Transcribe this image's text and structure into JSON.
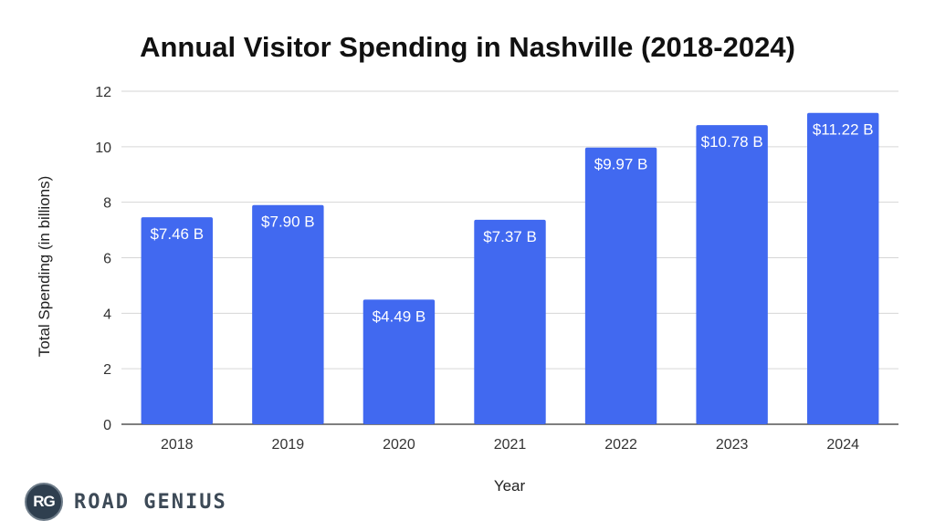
{
  "chart_data": {
    "type": "bar",
    "title": "Annual Visitor Spending in Nashville (2018-2024)",
    "xlabel": "Year",
    "ylabel": "Total Spending (in billions)",
    "categories": [
      "2018",
      "2019",
      "2020",
      "2021",
      "2022",
      "2023",
      "2024"
    ],
    "values": [
      7.46,
      7.9,
      4.49,
      7.37,
      9.97,
      10.78,
      11.22
    ],
    "data_labels": [
      "$7.46 B",
      "$7.90 B",
      "$4.49 B",
      "$7.37 B",
      "$9.97 B",
      "$10.78 B",
      "$11.22 B"
    ],
    "ylim": [
      0,
      12
    ],
    "yticks": [
      "0",
      "2",
      "4",
      "6",
      "8",
      "10",
      "12"
    ],
    "grid": true,
    "legend": "none",
    "bar_color": "#4169f0"
  },
  "logo": {
    "badge": "RG",
    "text": "ROAD GENIUS"
  }
}
